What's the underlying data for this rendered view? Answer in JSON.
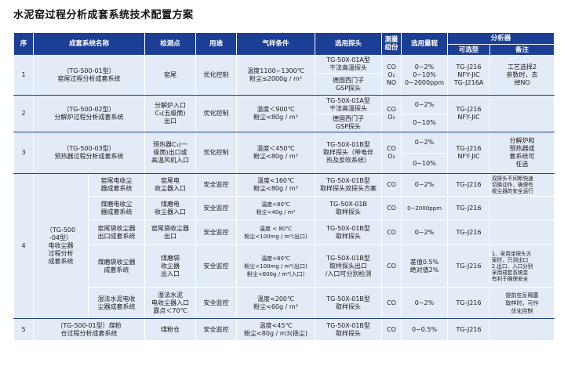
{
  "title": "水泥窑过程分析成套系统技术配置方案",
  "headers": {
    "seq": "序",
    "system_name": "成套系统名称",
    "point": "检测点",
    "purpose": "用途",
    "gas": "气样条件",
    "probe": "选用探头",
    "components": "测量\n组份",
    "range": "选用量程",
    "analyzer": "分析器",
    "optional": "可选型",
    "remark": "备注"
  },
  "rows": {
    "r1": {
      "seq": "1",
      "name": "（TG-500-01型）\n窑尾过程分析成套系统",
      "point": "窑尾",
      "purpose": "优化控制",
      "gas": "温度1100~1300℃\n粉尘≤2000g / m³",
      "probe_a": "TG-50X-01A型\n干法高温探头",
      "probe_b": "德国西门子\nGSP探头",
      "comp": "CO\nO₂\nNO",
      "range": "0~2%\n0~10%\n0~2000ppm",
      "model": "TG-J216\nNFY-JIC\nTG-J216A",
      "remark": "工艺选择2\n参数时，去\n掉NO"
    },
    "r2": {
      "seq": "2",
      "name": "（TG-500-02型）\n分解炉过程分析成套系统",
      "point": "分解炉入口\nC₅(五级筒)\n出口",
      "purpose": "优化控制",
      "gas": "温度＜900℃\n粉尘<80g / m³",
      "probe_a": "TG-50X-01A型\n干法高温探头",
      "probe_b": "德国西门子\nGSP探头",
      "comp": "CO\nO₂",
      "range_a": "0~2%",
      "range_b": "0~10%",
      "model": "TG-J216\nNFY-JIC",
      "remark": ""
    },
    "r3": {
      "seq": "3",
      "name": "（TG-500-03型）\n预热器过程分析成套系统",
      "point": "预热器C₁(一\n级筒)出口或\n高温风机入口",
      "purpose": "优化控制",
      "gas": "温度＜450℃\n粉尘<80g / m³",
      "probe": "TG-50X-01B型\n取样探头（带电伴\n热及反吹系统）",
      "comp": "CO\nO₂",
      "range_a": "0~2%",
      "range_b": "0~10%",
      "model": "TG-J216\nNFY-JIC",
      "remark": "分解炉和\n预热器成\n套系统可\n任选"
    },
    "r4": {
      "seq": "4",
      "name": "（TG-500\n-04型）\n电收尘器\n过程分析\n成套系统",
      "subs": [
        {
          "sub": "窑尾电收尘\n器成套系统",
          "point": "窑尾电\n收尘器入口",
          "purpose": "安全监控",
          "gas": "温度<160℃\n粉尘<80g / m³",
          "probe": "TG-50X-01B型\n取样探头双探头方案",
          "comp": "CO",
          "range": "0~2%",
          "model": "TG-J216",
          "remark": "双探头不间断快速\n切换动作，确保有\n收尘器的安全运行"
        },
        {
          "sub": "煤磨电收尘\n器成套系统",
          "point": "煤磨电\n收尘器入口",
          "purpose": "安全监控",
          "gas": "温度<80℃\n粉尘<40g / m³",
          "probe": "TG-50X-01B\n取样探头",
          "comp": "CO",
          "range": "0~2000ppm",
          "model": "TG-J216",
          "remark": ""
        },
        {
          "sub": "窑尾袋收尘器\n出口成套系统",
          "point": "窑尾袋收尘器\n出口",
          "purpose": "安全监控",
          "gas": "温度 < 80℃\n粉尘<100mg / m³(出口)",
          "probe": "TG-50X-01B型\n取样探头",
          "comp": "CO",
          "range": "0~2%",
          "model": "TG-J216",
          "remark": ""
        },
        {
          "sub": "煤磨袋收尘器\n成套系统",
          "point": "煤磨袋\n收尘器\n出入口",
          "purpose": "安全监控",
          "gas": "温度<80℃\n粉尘<100mg / m³(出口)\n粉尘<600g / m³(入口)",
          "probe": "TG-50X-01B型\n取样探头出口\n/入口可分别检测",
          "comp": "CO",
          "range": "差值0.5%\n绝对值2%",
          "model": "TG-J216",
          "remark": "1、采用单探头方\n案时，只测出口\n2.出口、入口分别\n采用成套系统变\n有利于确保安全"
        },
        {
          "sub": "湿法水泥电收\n尘器成套系统",
          "point": "湿法水泥\n电收尘器入口\n露点＜70℃",
          "purpose": "安全监控",
          "gas": "温度<200℃\n粉尘<60g / m³",
          "probe": "TG-50X-01B型\n取样探头",
          "comp": "CO",
          "range": "0~2%",
          "model": "TG-J216",
          "remark": "提前在反隔塞\n取样时，可作\n优化控制"
        }
      ]
    },
    "r5": {
      "seq": "5",
      "name": "（TG-500-01型）煤粉\n仓过程分析成套系统",
      "point": "煤粉仓",
      "purpose": "安全监控",
      "gas": "温度<45℃\n粉尘<80g / m3(扬尘)",
      "probe": "TG-50X-01B型\n取样探头",
      "comp": "CO",
      "range": "0~0.5%",
      "model": "TG-J216",
      "remark": ""
    }
  }
}
